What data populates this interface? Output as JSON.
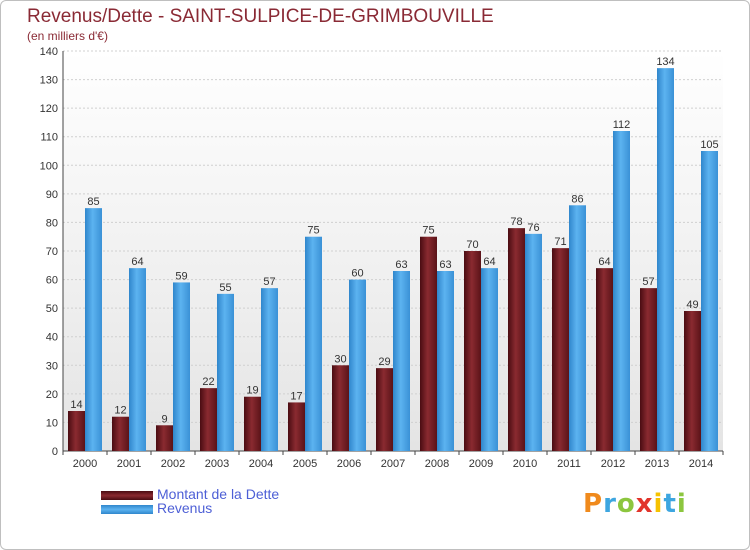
{
  "title": "Revenus/Dette - SAINT-SULPICE-DE-GRIMBOUVILLE",
  "subtitle": "(en milliers d'€)",
  "logo": {
    "text": "Proxiti",
    "letters": [
      "P",
      "r",
      "o",
      "x",
      "i",
      "t",
      "i"
    ],
    "colors": [
      "#f08a1c",
      "#3da6e0",
      "#8cc63f",
      "#e2342b",
      "#f6c200",
      "#3da6e0",
      "#8cc63f"
    ]
  },
  "chart_data": {
    "type": "bar",
    "categories": [
      "2000",
      "2001",
      "2002",
      "2003",
      "2004",
      "2005",
      "2006",
      "2007",
      "2008",
      "2009",
      "2010",
      "2011",
      "2012",
      "2013",
      "2014"
    ],
    "series": [
      {
        "name": "Montant de la Dette",
        "color": "#7a1f24",
        "values": [
          14,
          12,
          9,
          22,
          19,
          17,
          30,
          29,
          75,
          70,
          78,
          71,
          64,
          57,
          49
        ]
      },
      {
        "name": "Revenus",
        "color": "#4aa3e8",
        "values": [
          85,
          64,
          59,
          55,
          57,
          75,
          60,
          63,
          63,
          64,
          76,
          86,
          112,
          134,
          105
        ]
      }
    ],
    "ylim": [
      0,
      140
    ],
    "yticks": [
      0,
      10,
      20,
      30,
      40,
      50,
      60,
      70,
      80,
      90,
      100,
      110,
      120,
      130,
      140
    ],
    "grid": true,
    "legend": "bottom-left"
  }
}
